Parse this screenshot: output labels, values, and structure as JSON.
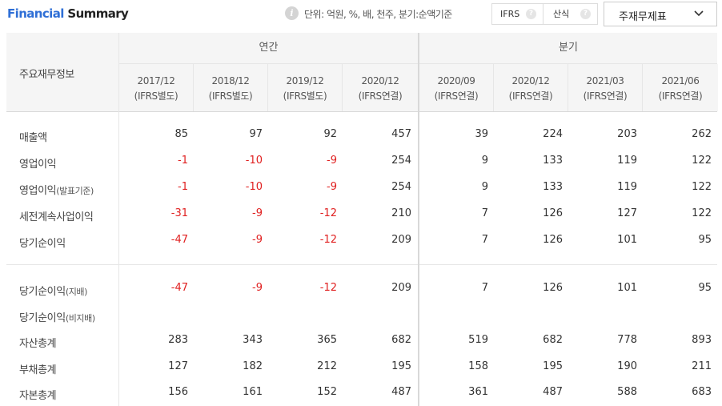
{
  "header": {
    "title_part1": "Financial",
    "title_part2": "Summary",
    "info_icon": "info-icon",
    "unit_text": "단위: 억원, %, 배, 천주, 분기:순액기준",
    "toggle": [
      {
        "label": "IFRS",
        "icon": "help-icon"
      },
      {
        "label": "산식",
        "icon": "help-icon"
      }
    ],
    "select": {
      "value": "주재무제표",
      "icon": "chevron-down-icon"
    }
  },
  "table": {
    "row_header_title": "주요재무정보",
    "groups": [
      {
        "label": "연간"
      },
      {
        "label": "분기"
      }
    ],
    "columns": [
      {
        "period": "2017/12",
        "sub": "(IFRS별도)"
      },
      {
        "period": "2018/12",
        "sub": "(IFRS별도)"
      },
      {
        "period": "2019/12",
        "sub": "(IFRS별도)"
      },
      {
        "period": "2020/12",
        "sub": "(IFRS연결)"
      },
      {
        "period": "2020/09",
        "sub": "(IFRS연결)"
      },
      {
        "period": "2020/12",
        "sub": "(IFRS연결)"
      },
      {
        "period": "2021/03",
        "sub": "(IFRS연결)"
      },
      {
        "period": "2021/06",
        "sub": "(IFRS연결)"
      }
    ],
    "rows": [
      {
        "label": "매출액",
        "suffix": "",
        "values": [
          "85",
          "97",
          "92",
          "457",
          "39",
          "224",
          "203",
          "262"
        ]
      },
      {
        "label": "영업이익",
        "suffix": "",
        "values": [
          "-1",
          "-10",
          "-9",
          "254",
          "9",
          "133",
          "119",
          "122"
        ]
      },
      {
        "label": "영업이익",
        "suffix": "(발표기준)",
        "values": [
          "-1",
          "-10",
          "-9",
          "254",
          "9",
          "133",
          "119",
          "122"
        ]
      },
      {
        "label": "세전계속사업이익",
        "suffix": "",
        "values": [
          "-31",
          "-9",
          "-12",
          "210",
          "7",
          "126",
          "127",
          "122"
        ]
      },
      {
        "label": "당기순이익",
        "suffix": "",
        "values": [
          "-47",
          "-9",
          "-12",
          "209",
          "7",
          "126",
          "101",
          "95"
        ]
      },
      {
        "label": "당기순이익",
        "suffix": "(지배)",
        "values": [
          "-47",
          "-9",
          "-12",
          "209",
          "7",
          "126",
          "101",
          "95"
        ]
      },
      {
        "label": "당기순이익",
        "suffix": "(비지배)",
        "values": [
          "",
          "",
          "",
          "",
          "",
          "",
          "",
          ""
        ]
      },
      {
        "label": "자산총계",
        "suffix": "",
        "values": [
          "283",
          "343",
          "365",
          "682",
          "519",
          "682",
          "778",
          "893"
        ]
      },
      {
        "label": "부채총계",
        "suffix": "",
        "values": [
          "127",
          "182",
          "212",
          "195",
          "158",
          "195",
          "190",
          "211"
        ]
      },
      {
        "label": "자본총계",
        "suffix": "",
        "values": [
          "156",
          "161",
          "152",
          "487",
          "361",
          "487",
          "588",
          "683"
        ]
      }
    ]
  },
  "colors": {
    "accent": "#2f6fd6",
    "negative": "#e02020",
    "header_bg": "#f5f5f5"
  }
}
